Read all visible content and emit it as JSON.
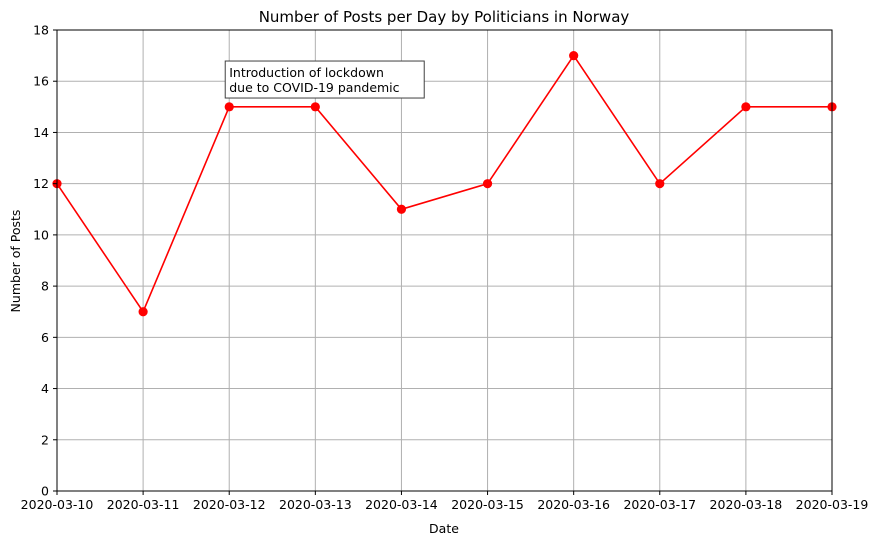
{
  "chart_data": {
    "type": "line",
    "title": "Number of Posts per Day by Politicians in Norway",
    "xlabel": "Date",
    "ylabel": "Number of Posts",
    "x": [
      "2020-03-10",
      "2020-03-11",
      "2020-03-12",
      "2020-03-13",
      "2020-03-14",
      "2020-03-15",
      "2020-03-16",
      "2020-03-17",
      "2020-03-18",
      "2020-03-19"
    ],
    "series": [
      {
        "values": [
          12,
          7,
          15,
          15,
          11,
          12,
          17,
          12,
          15,
          15
        ],
        "color": "#ff0000",
        "marker": "circle"
      }
    ],
    "ylim": [
      0,
      18
    ],
    "yticks": [
      0,
      2,
      4,
      6,
      8,
      10,
      12,
      14,
      16,
      18
    ],
    "grid": true,
    "annotations": [
      {
        "lines": [
          "Introduction of lockdown",
          "due to COVID-19 pandemic"
        ],
        "x": "2020-03-12",
        "y": 15.5
      }
    ]
  }
}
